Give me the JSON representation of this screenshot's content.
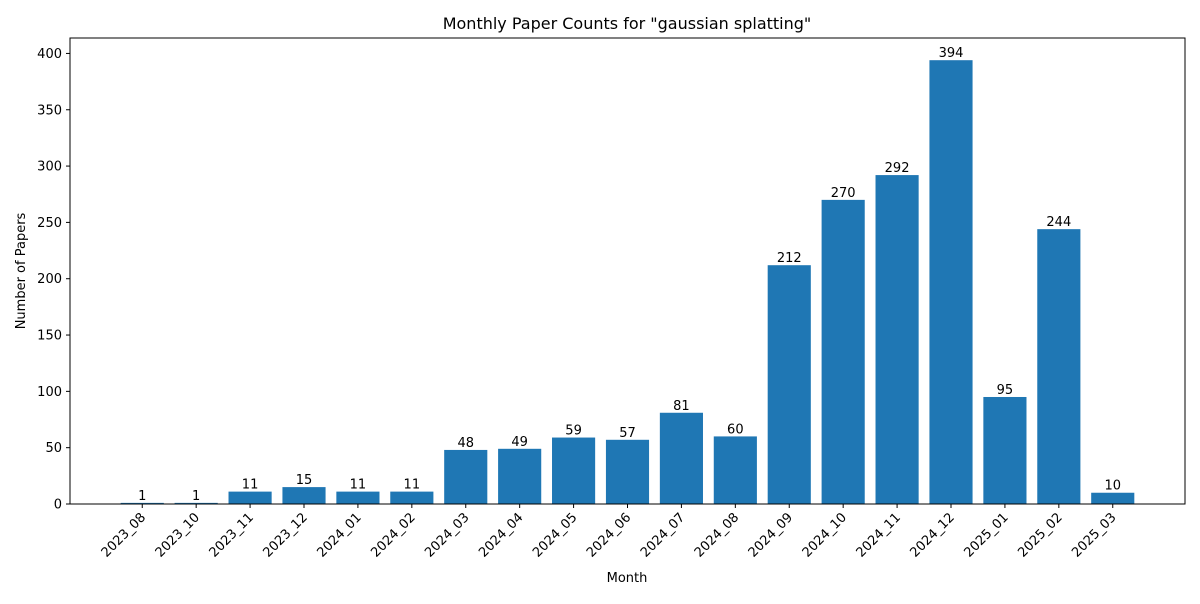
{
  "chart_data": {
    "type": "bar",
    "title": "Monthly Paper Counts for \"gaussian splatting\"",
    "xlabel": "Month",
    "ylabel": "Number of Papers",
    "categories": [
      "2023_08",
      "2023_10",
      "2023_11",
      "2023_12",
      "2024_01",
      "2024_02",
      "2024_03",
      "2024_04",
      "2024_05",
      "2024_06",
      "2024_07",
      "2024_08",
      "2024_09",
      "2024_10",
      "2024_11",
      "2024_12",
      "2025_01",
      "2025_02",
      "2025_03"
    ],
    "values": [
      1,
      1,
      11,
      15,
      11,
      11,
      48,
      49,
      59,
      57,
      81,
      60,
      212,
      270,
      292,
      394,
      95,
      244,
      10
    ],
    "ylim": [
      0,
      413.7
    ],
    "yticks": [
      0,
      50,
      100,
      150,
      200,
      250,
      300,
      350,
      400
    ],
    "grid": false,
    "bar_color": "#1f77b4",
    "data_labels": true
  }
}
